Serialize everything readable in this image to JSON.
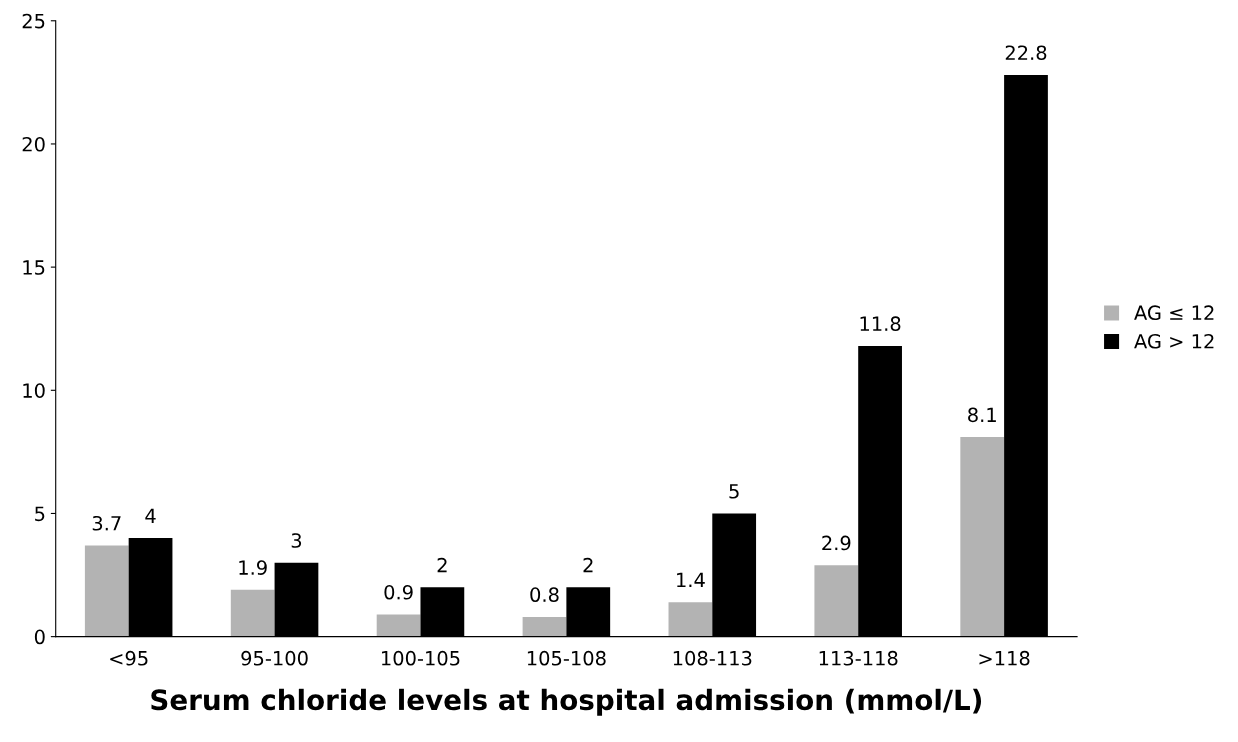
{
  "chart_data": {
    "type": "bar",
    "xlabel": "Serum chloride levels at hospital admission (mmol/L)",
    "categories": [
      "<95",
      "95-100",
      "100-105",
      "105-108",
      "108-113",
      "113-118",
      ">118"
    ],
    "series": [
      {
        "name": "AG ≤ 12",
        "color": "#b3b3b3",
        "values": [
          3.7,
          1.9,
          0.9,
          0.8,
          1.4,
          2.9,
          8.1
        ]
      },
      {
        "name": "AG > 12",
        "color": "#000000",
        "values": [
          4,
          3,
          2,
          2,
          5,
          11.8,
          22.8
        ]
      }
    ],
    "ylim": [
      0,
      25
    ],
    "yticks": [
      0,
      5,
      10,
      15,
      20,
      25
    ],
    "grid": false,
    "legend": "right",
    "data_labels": true
  }
}
